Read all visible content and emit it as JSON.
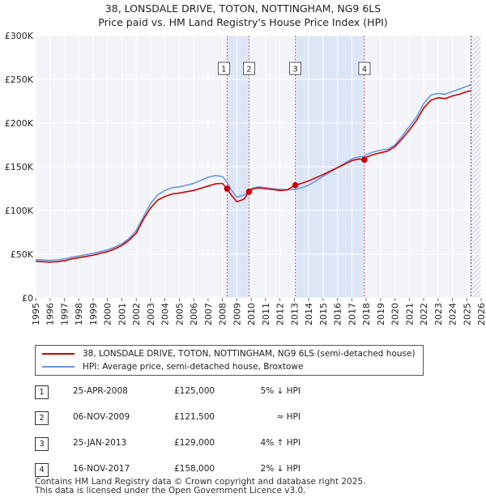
{
  "chart_data": {
    "type": "line",
    "title": "38, LONSDALE DRIVE, TOTON, NOTTINGHAM, NG9 6LS",
    "subtitle": "Price paid vs. HM Land Registry's House Price Index (HPI)",
    "xlabel": "",
    "ylabel": "",
    "xlim": [
      1995,
      2026
    ],
    "ylim": [
      0,
      300000
    ],
    "y_ticks": [
      {
        "value": 0,
        "label": "£0"
      },
      {
        "value": 50000,
        "label": "£50K"
      },
      {
        "value": 100000,
        "label": "£100K"
      },
      {
        "value": 150000,
        "label": "£150K"
      },
      {
        "value": 200000,
        "label": "£200K"
      },
      {
        "value": 250000,
        "label": "£250K"
      },
      {
        "value": 300000,
        "label": "£300K"
      }
    ],
    "x_ticks": [
      "1995",
      "1996",
      "1997",
      "1998",
      "1999",
      "2000",
      "2001",
      "2002",
      "2003",
      "2004",
      "2005",
      "2006",
      "2007",
      "2008",
      "2009",
      "2010",
      "2011",
      "2012",
      "2013",
      "2014",
      "2015",
      "2016",
      "2017",
      "2018",
      "2019",
      "2020",
      "2021",
      "2022",
      "2023",
      "2024",
      "2025",
      "2026"
    ],
    "grid": true,
    "series": [
      {
        "name": "38, LONSDALE DRIVE, TOTON, NOTTINGHAM, NG9 6LS (semi-detached house)",
        "color": "#cc0000",
        "x": [
          1995.0,
          1995.5,
          1996.0,
          1996.5,
          1997.0,
          1997.5,
          1998.0,
          1998.5,
          1999.0,
          1999.5,
          2000.0,
          2000.5,
          2001.0,
          2001.5,
          2002.0,
          2002.5,
          2003.0,
          2003.5,
          2004.0,
          2004.5,
          2005.0,
          2005.5,
          2006.0,
          2006.5,
          2007.0,
          2007.5,
          2008.0,
          2008.32,
          2008.6,
          2009.0,
          2009.5,
          2009.85,
          2010.0,
          2010.5,
          2011.0,
          2011.5,
          2012.0,
          2012.5,
          2013.07,
          2013.5,
          2014.0,
          2014.5,
          2015.0,
          2015.5,
          2016.0,
          2016.5,
          2017.0,
          2017.5,
          2017.88,
          2018.0,
          2018.5,
          2019.0,
          2019.5,
          2020.0,
          2020.5,
          2021.0,
          2021.5,
          2022.0,
          2022.5,
          2023.0,
          2023.5,
          2024.0,
          2024.5,
          2025.0,
          2025.3
        ],
        "values": [
          42000,
          41500,
          41000,
          41500,
          42500,
          44500,
          46000,
          47500,
          49000,
          51000,
          53000,
          56000,
          60000,
          66000,
          74000,
          90000,
          103000,
          112000,
          116000,
          119000,
          120000,
          121500,
          123000,
          125500,
          128000,
          130500,
          131000,
          125000,
          118000,
          110000,
          113000,
          121500,
          124000,
          126000,
          125000,
          124000,
          123000,
          123500,
          129000,
          131000,
          134000,
          137500,
          141000,
          145000,
          149000,
          153000,
          157000,
          159000,
          158000,
          161000,
          164000,
          166000,
          168000,
          173000,
          182000,
          192000,
          203000,
          217000,
          226000,
          229000,
          228000,
          231000,
          233000,
          236000,
          237000
        ]
      },
      {
        "name": "HPI: Average price, semi-detached house, Broxtowe",
        "color": "#6699dd",
        "x": [
          1995.0,
          1995.5,
          1996.0,
          1996.5,
          1997.0,
          1997.5,
          1998.0,
          1998.5,
          1999.0,
          1999.5,
          2000.0,
          2000.5,
          2001.0,
          2001.5,
          2002.0,
          2002.5,
          2003.0,
          2003.5,
          2004.0,
          2004.5,
          2005.0,
          2005.5,
          2006.0,
          2006.5,
          2007.0,
          2007.5,
          2008.0,
          2008.32,
          2008.6,
          2009.0,
          2009.5,
          2009.85,
          2010.0,
          2010.5,
          2011.0,
          2011.5,
          2012.0,
          2012.5,
          2013.07,
          2013.5,
          2014.0,
          2014.5,
          2015.0,
          2015.5,
          2016.0,
          2016.5,
          2017.0,
          2017.5,
          2017.88,
          2018.0,
          2018.5,
          2019.0,
          2019.5,
          2020.0,
          2020.5,
          2021.0,
          2021.5,
          2022.0,
          2022.5,
          2023.0,
          2023.5,
          2024.0,
          2024.5,
          2025.0,
          2025.3
        ],
        "values": [
          44000,
          43500,
          43000,
          43500,
          44500,
          46500,
          48000,
          49500,
          51000,
          53000,
          55000,
          58000,
          62000,
          68000,
          77000,
          93000,
          108000,
          118000,
          123000,
          126000,
          127000,
          129000,
          131000,
          134500,
          138000,
          140000,
          139000,
          132000,
          124000,
          115000,
          118000,
          121000,
          125000,
          127000,
          126000,
          125000,
          124000,
          124000,
          124000,
          126000,
          129000,
          134000,
          139000,
          144000,
          149000,
          154000,
          159000,
          161500,
          161500,
          164000,
          167000,
          169000,
          170000,
          175000,
          185000,
          196000,
          207000,
          222000,
          232000,
          234000,
          233000,
          236000,
          239000,
          242000,
          244000
        ]
      }
    ],
    "sales": [
      {
        "label": "1",
        "x": 2008.32,
        "value": 125000
      },
      {
        "label": "2",
        "x": 2009.85,
        "value": 121500
      },
      {
        "label": "3",
        "x": 2013.07,
        "value": 129000
      },
      {
        "label": "4",
        "x": 2017.88,
        "value": 158000
      }
    ]
  },
  "legend": {
    "property_label": "38, LONSDALE DRIVE, TOTON, NOTTINGHAM, NG9 6LS (semi-detached house)",
    "hpi_label": "HPI: Average price, semi-detached house, Broxtowe"
  },
  "sales_table": [
    {
      "num": "1",
      "date": "25-APR-2008",
      "price": "£125,000",
      "hpi": "5% ↓ HPI"
    },
    {
      "num": "2",
      "date": "06-NOV-2009",
      "price": "£121,500",
      "hpi": "≈ HPI"
    },
    {
      "num": "3",
      "date": "25-JAN-2013",
      "price": "£129,000",
      "hpi": "4% ↑ HPI"
    },
    {
      "num": "4",
      "date": "16-NOV-2017",
      "price": "£158,000",
      "hpi": "2% ↓ HPI"
    }
  ],
  "footer": {
    "line1": "Contains HM Land Registry data © Crown copyright and database right 2025.",
    "line2": "This data is licensed under the Open Government Licence v3.0."
  },
  "colors": {
    "property": "#cc0000",
    "hpi": "#6699dd",
    "shade": "#dde6f7",
    "plot_bg": "#f2f4fa",
    "grid": "#ffffff"
  }
}
